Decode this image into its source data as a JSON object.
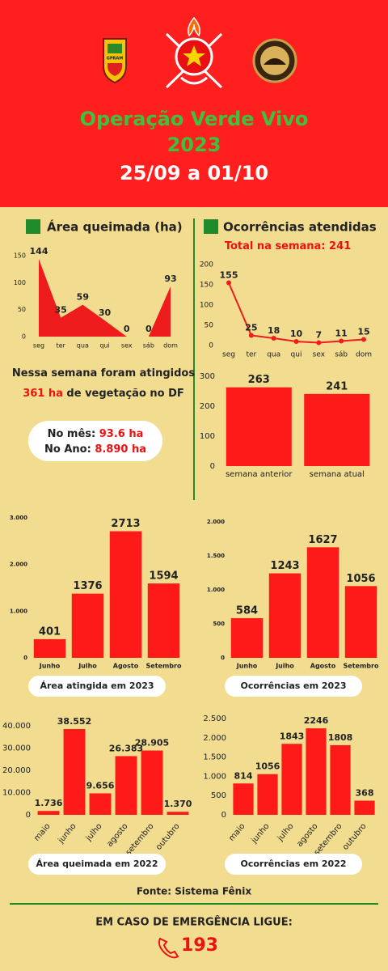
{
  "header": {
    "title": "Operação Verde Vivo",
    "year": "2023",
    "period": "25/09 a 01/10"
  },
  "logos": {
    "left": "GPRAM",
    "right": "CBMDF"
  },
  "left_heading": "Área queimada (ha)",
  "right_heading": "Ocorrências atendidas",
  "total": {
    "label": "Total na semana:",
    "value": 241
  },
  "summary": {
    "before": "Nessa semana foram atingidos",
    "highlight": "361 ha",
    "after": "de vegetação no DF"
  },
  "totals_box": {
    "month_label": "No mês:",
    "month_value": "93.6 ha",
    "year_label": "No Ano:",
    "year_value": "8.890 ha"
  },
  "chart_data": [
    {
      "type": "area",
      "categories": [
        "seg",
        "ter",
        "qua",
        "qui",
        "sex",
        "sáb",
        "dom"
      ],
      "values": [
        144,
        35,
        59,
        30,
        0,
        0,
        93
      ],
      "color": "#ee1c1c",
      "ylim": [
        0,
        150
      ],
      "yticks": [
        0,
        50,
        100,
        150
      ]
    },
    {
      "type": "line",
      "categories": [
        "seg",
        "ter",
        "qua",
        "qui",
        "sex",
        "sáb",
        "dom"
      ],
      "values": [
        155,
        25,
        18,
        10,
        7,
        11,
        15
      ],
      "color": "#ee1c1c",
      "ylim": [
        0,
        200
      ],
      "yticks": [
        0,
        50,
        100,
        150,
        200
      ]
    },
    {
      "type": "bar",
      "categories": [
        "semana anterior",
        "semana atual"
      ],
      "values": [
        263,
        241
      ],
      "color": "#ff1a1a",
      "ylim": [
        0,
        300
      ],
      "yticks": [
        0,
        100,
        200,
        300
      ]
    },
    {
      "type": "bar",
      "caption": "Área atingida em 2023",
      "categories": [
        "Junho",
        "Julho",
        "Agosto",
        "Setembro"
      ],
      "values": [
        401,
        1376,
        2713,
        1594
      ],
      "color": "#ff1a1a",
      "ylim": [
        0,
        3000
      ],
      "yticks": [
        0,
        {
          "value": 1000,
          "label": "1.000"
        },
        {
          "value": 2000,
          "label": "2.000"
        },
        {
          "value": 3000,
          "label": "3.000"
        }
      ]
    },
    {
      "type": "bar",
      "caption": "Ocorrências em 2023",
      "categories": [
        "Junho",
        "Julho",
        "Agosto",
        "Setembro"
      ],
      "values": [
        584,
        1243,
        1627,
        1056
      ],
      "color": "#ff1a1a",
      "ylim": [
        0,
        2000
      ],
      "yticks": [
        0,
        500,
        {
          "value": 1000,
          "label": "1.000"
        },
        {
          "value": 1500,
          "label": "1.500"
        },
        {
          "value": 2000,
          "label": "2.000"
        }
      ]
    },
    {
      "type": "bar",
      "caption": "Área queimada em 2022",
      "categories": [
        "maio",
        "junho",
        "julho",
        "agosto",
        "setembro",
        "outubro"
      ],
      "values": [
        1736,
        38552,
        9656,
        26383,
        28905,
        1370
      ],
      "value_labels": [
        "1.736",
        "38.552",
        "9.656",
        "26.383",
        "28.905",
        "1.370"
      ],
      "color": "#ff1a1a",
      "ylim": [
        0,
        40000
      ],
      "yticks": [
        0,
        {
          "value": 10000,
          "label": "10.000"
        },
        {
          "value": 20000,
          "label": "20.000"
        },
        {
          "value": 30000,
          "label": "30.000"
        },
        {
          "value": 40000,
          "label": "40.000"
        }
      ]
    },
    {
      "type": "bar",
      "caption": "Ocorrências em 2022",
      "categories": [
        "maio",
        "junho",
        "julho",
        "agosto",
        "setembro",
        "outubro"
      ],
      "values": [
        814,
        1056,
        1843,
        2246,
        1808,
        368
      ],
      "color": "#ff1a1a",
      "ylim": [
        0,
        2500
      ],
      "yticks": [
        0,
        500,
        {
          "value": 1000,
          "label": "1.000"
        },
        {
          "value": 1500,
          "label": "1.500"
        },
        {
          "value": 2000,
          "label": "2.000"
        },
        {
          "value": 2500,
          "label": "2.500"
        }
      ]
    }
  ],
  "source": "Fonte: Sistema Fênix",
  "emergency": {
    "label": "EM CASO DE EMERGÊNCIA LIGUE:",
    "number": "193"
  }
}
